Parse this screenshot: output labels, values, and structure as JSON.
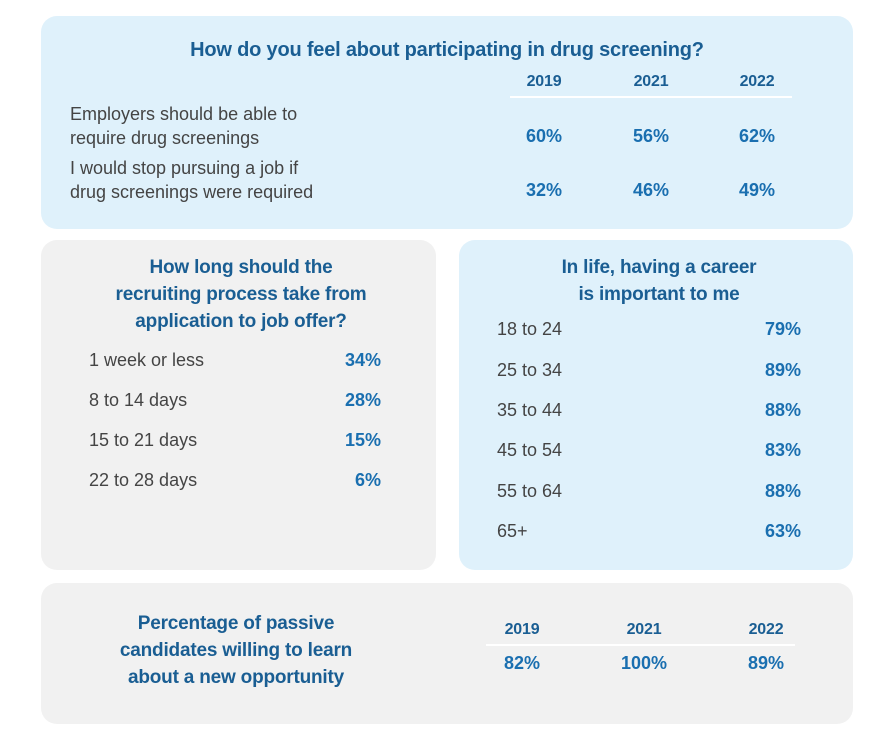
{
  "drug_screening": {
    "title": "How do you feel about participating in drug screening?",
    "years": [
      "2019",
      "2021",
      "2022"
    ],
    "rows": [
      {
        "label_line1": "Employers should be able to",
        "label_line2": "require drug screenings",
        "values": [
          "60%",
          "56%",
          "62%"
        ]
      },
      {
        "label_line1": "I would stop pursuing a job if",
        "label_line2": "drug screenings were required",
        "values": [
          "32%",
          "46%",
          "49%"
        ]
      }
    ]
  },
  "recruiting_length": {
    "title_lines": [
      "How long should the",
      "recruiting process take from",
      "application to job offer?"
    ],
    "rows": [
      {
        "label": "1 week or less",
        "value": "34%"
      },
      {
        "label": "8 to 14 days",
        "value": "28%"
      },
      {
        "label": "15 to 21 days",
        "value": "15%"
      },
      {
        "label": "22 to 28 days",
        "value": "6%"
      }
    ]
  },
  "career_importance": {
    "title_lines": [
      "In life, having a career",
      "is important to me"
    ],
    "rows": [
      {
        "label": "18 to 24",
        "value": "79%"
      },
      {
        "label": "25 to 34",
        "value": "89%"
      },
      {
        "label": "35 to 44",
        "value": "88%"
      },
      {
        "label": "45 to 54",
        "value": "83%"
      },
      {
        "label": "55 to 64",
        "value": "88%"
      },
      {
        "label": "65+",
        "value": "63%"
      }
    ]
  },
  "passive_candidates": {
    "title_lines": [
      "Percentage of passive",
      "candidates willing to learn",
      "about a new opportunity"
    ],
    "years": [
      "2019",
      "2021",
      "2022"
    ],
    "values": [
      "82%",
      "100%",
      "89%"
    ]
  },
  "colors": {
    "blue_panel": "#dff1fb",
    "grey_panel": "#f1f1f1",
    "heading": "#1a5e93",
    "value": "#1a6fb0"
  }
}
